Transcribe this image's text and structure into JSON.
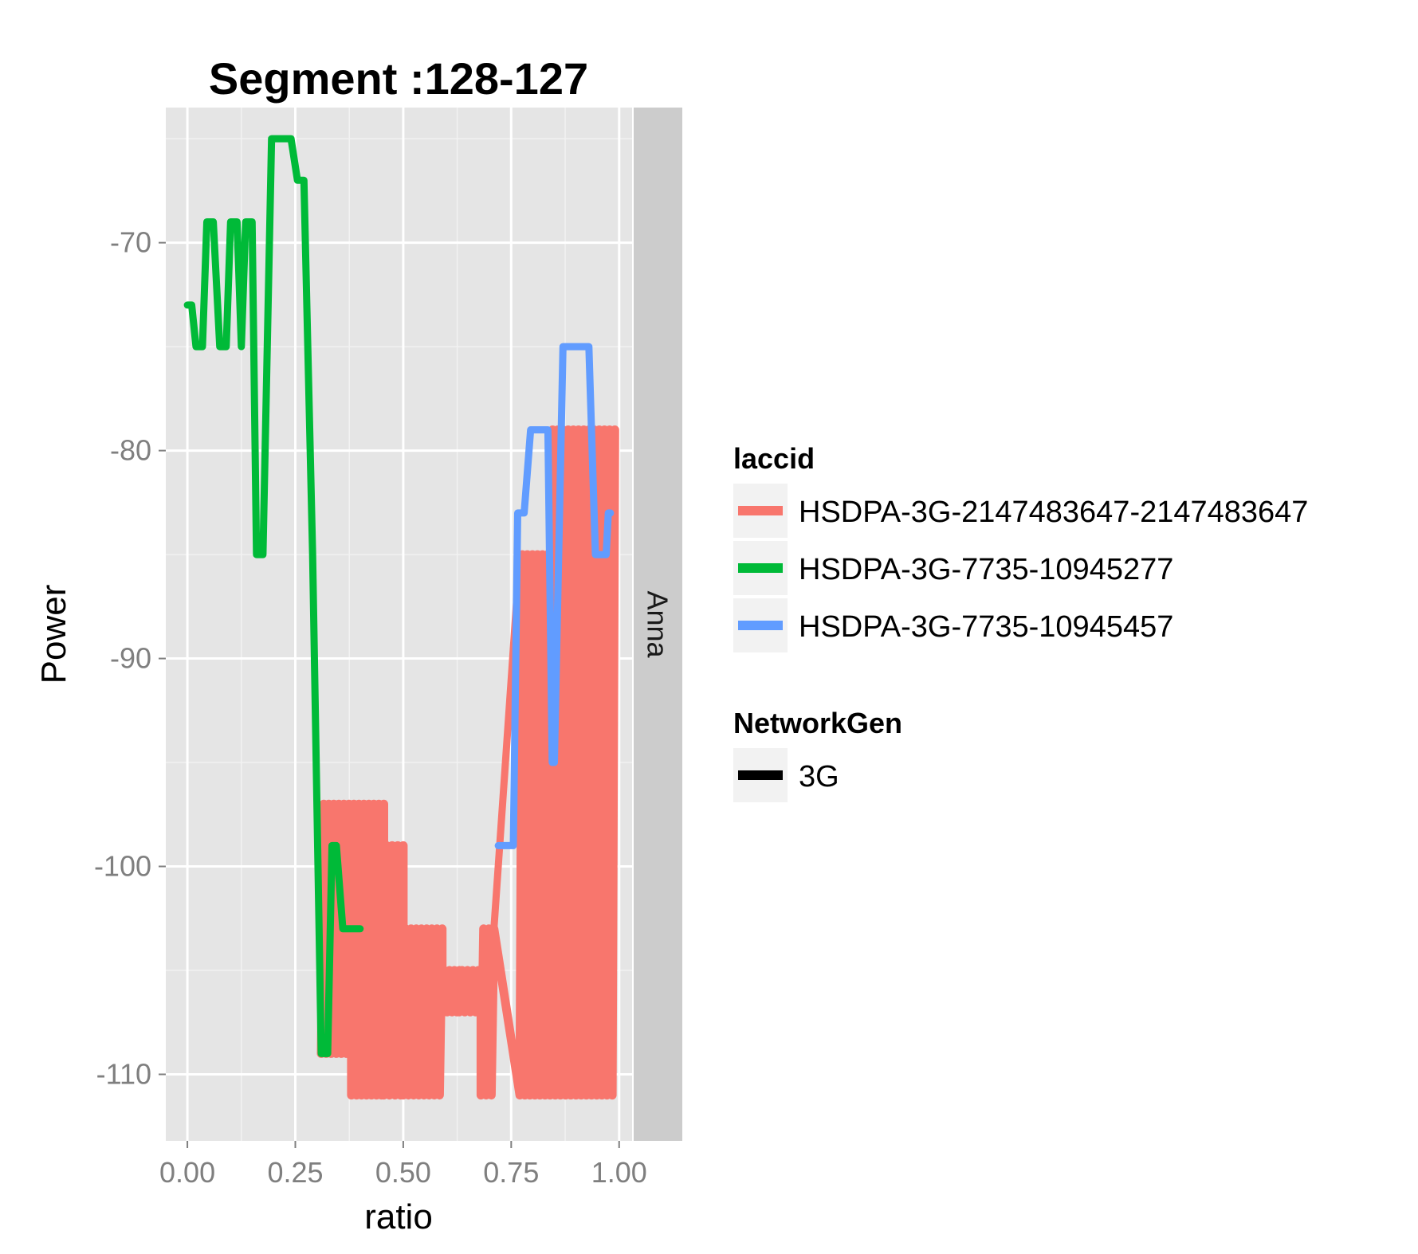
{
  "chart_data": {
    "type": "line",
    "title": "Segment :128-127",
    "xlabel": "ratio",
    "ylabel": "Power",
    "xlim": [
      -0.05,
      1.03
    ],
    "ylim": [
      -113.2,
      -63.5
    ],
    "x_ticks": [
      0.0,
      0.25,
      0.5,
      0.75,
      1.0
    ],
    "x_tick_labels": [
      "0.00",
      "0.25",
      "0.50",
      "0.75",
      "1.00"
    ],
    "y_ticks": [
      -70,
      -80,
      -90,
      -100,
      -110
    ],
    "y_tick_labels": [
      "-70",
      "-80",
      "-90",
      "-100",
      "-110"
    ],
    "grid": true,
    "facet_label": "Anna",
    "legend": {
      "position": "right",
      "laccid_title": "laccid",
      "networkgen_title": "NetworkGen",
      "networkgen_items": [
        {
          "label": "3G",
          "color": "#000000"
        }
      ]
    },
    "series": [
      {
        "name": "HSDPA-3G-2147483647-2147483647",
        "color": "#F8766D",
        "style": "oscillating_band",
        "segments": [
          {
            "x": [
              0.31,
              0.38
            ],
            "low": -109,
            "high": -97
          },
          {
            "x": [
              0.38,
              0.455
            ],
            "low": -111,
            "high": -97
          },
          {
            "x": [
              0.455,
              0.5
            ],
            "low": -111,
            "high": -99
          },
          {
            "x": [
              0.5,
              0.59
            ],
            "low": -111,
            "high": -103
          },
          {
            "x": [
              0.59,
              0.63
            ],
            "low": -107,
            "high": -105
          },
          {
            "x": [
              0.63,
              0.68
            ],
            "low": -107,
            "high": -105
          },
          {
            "x": [
              0.68,
              0.71
            ],
            "low": -111,
            "high": -103
          },
          {
            "x": [
              0.77,
              0.84
            ],
            "low": -111,
            "high": -85
          },
          {
            "x": [
              0.84,
              0.99
            ],
            "low": -111,
            "high": -79
          }
        ],
        "connector": {
          "x": [
            0.71,
            0.77
          ],
          "y": [
            -103,
            -85
          ]
        }
      },
      {
        "name": "HSDPA-3G-7735-10945277",
        "color": "#00BA38",
        "style": "line",
        "x": [
          0.0,
          0.01,
          0.02,
          0.035,
          0.045,
          0.06,
          0.075,
          0.09,
          0.1,
          0.115,
          0.125,
          0.135,
          0.15,
          0.16,
          0.175,
          0.185,
          0.195,
          0.2,
          0.21,
          0.24,
          0.255,
          0.27,
          0.29,
          0.31,
          0.325,
          0.335,
          0.345,
          0.36,
          0.37,
          0.4
        ],
        "y": [
          -73,
          -73,
          -75,
          -75,
          -69,
          -69,
          -75,
          -75,
          -69,
          -69,
          -75,
          -69,
          -69,
          -85,
          -85,
          -75,
          -65,
          -65,
          -65,
          -65,
          -67,
          -67,
          -85,
          -109,
          -109,
          -99,
          -99,
          -103,
          -103,
          -103
        ]
      },
      {
        "name": "HSDPA-3G-7735-10945457",
        "color": "#619CFF",
        "style": "line",
        "x": [
          0.72,
          0.755,
          0.765,
          0.78,
          0.795,
          0.825,
          0.835,
          0.845,
          0.85,
          0.87,
          0.88,
          0.93,
          0.945,
          0.96,
          0.97,
          0.975,
          0.98
        ],
        "y": [
          -99,
          -99,
          -83,
          -83,
          -79,
          -79,
          -79,
          -95,
          -95,
          -75,
          -75,
          -75,
          -85,
          -85,
          -85,
          -83,
          -83
        ]
      }
    ]
  }
}
